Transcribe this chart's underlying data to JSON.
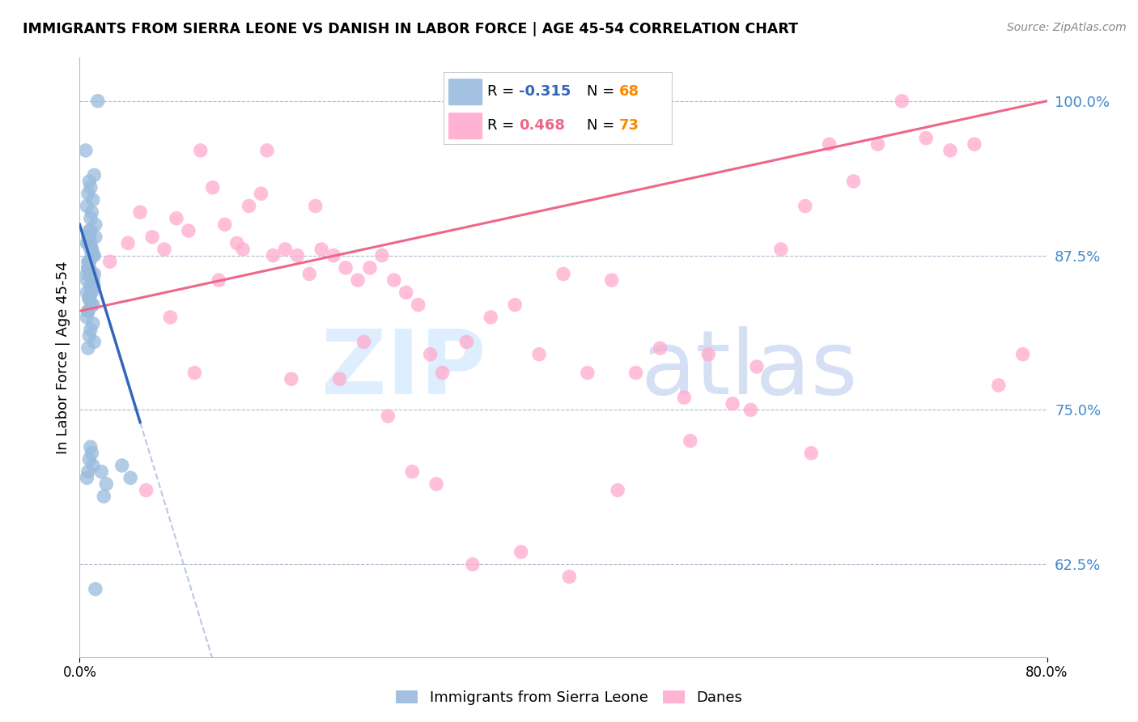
{
  "title": "IMMIGRANTS FROM SIERRA LEONE VS DANISH IN LABOR FORCE | AGE 45-54 CORRELATION CHART",
  "source": "Source: ZipAtlas.com",
  "ylabel": "In Labor Force | Age 45-54",
  "xlim": [
    0.0,
    80.0
  ],
  "ylim": [
    55.0,
    103.5
  ],
  "yticks": [
    62.5,
    75.0,
    87.5,
    100.0
  ],
  "ytick_labels": [
    "62.5%",
    "75.0%",
    "87.5%",
    "100.0%"
  ],
  "blue_color": "#99BBDD",
  "pink_color": "#FFAACC",
  "blue_line_color": "#3366BB",
  "pink_line_color": "#EE6688",
  "legend_n_color": "#FF8800",
  "blue_r_text": "-0.315",
  "pink_r_text": "0.468",
  "blue_n": "68",
  "pink_n": "73",
  "blue_x": [
    1.5,
    0.5,
    1.2,
    0.8,
    0.9,
    0.7,
    1.1,
    0.6,
    1.0,
    0.9,
    1.3,
    0.8,
    0.7,
    0.9,
    1.0,
    1.1,
    0.8,
    0.7,
    1.2,
    0.6,
    0.9,
    1.0,
    0.8,
    1.1,
    0.7,
    0.9,
    0.8,
    0.6,
    1.0,
    1.2,
    0.7,
    0.8,
    0.9,
    1.1,
    1.0,
    0.6,
    0.8,
    1.3,
    0.7,
    0.9,
    1.0,
    0.8,
    0.7,
    0.6,
    1.1,
    1.2,
    0.9,
    0.8,
    1.0,
    0.7,
    0.6,
    1.1,
    0.9,
    0.8,
    1.2,
    0.7,
    3.5,
    4.2,
    1.8,
    2.2,
    0.9,
    1.0,
    0.8,
    1.1,
    0.7,
    0.6,
    1.3,
    2.0
  ],
  "blue_y": [
    100.0,
    96.0,
    94.0,
    93.5,
    93.0,
    92.5,
    92.0,
    91.5,
    91.0,
    90.5,
    90.0,
    89.5,
    89.0,
    88.5,
    88.0,
    87.5,
    87.0,
    86.5,
    86.0,
    85.5,
    85.0,
    84.5,
    84.0,
    83.5,
    83.0,
    89.5,
    89.0,
    88.5,
    88.0,
    87.5,
    87.0,
    86.5,
    86.0,
    85.5,
    85.0,
    84.5,
    84.0,
    89.0,
    88.5,
    88.0,
    87.5,
    87.0,
    86.5,
    86.0,
    85.5,
    85.0,
    84.5,
    84.0,
    83.5,
    83.0,
    82.5,
    82.0,
    81.5,
    81.0,
    80.5,
    80.0,
    70.5,
    69.5,
    70.0,
    69.0,
    72.0,
    71.5,
    71.0,
    70.5,
    70.0,
    69.5,
    60.5,
    68.0
  ],
  "pink_x": [
    1.0,
    2.5,
    4.0,
    5.0,
    6.0,
    7.0,
    8.0,
    9.0,
    10.0,
    11.0,
    12.0,
    13.0,
    14.0,
    15.0,
    16.0,
    17.0,
    18.0,
    19.0,
    20.0,
    21.0,
    22.0,
    23.0,
    24.0,
    25.0,
    26.0,
    27.0,
    28.0,
    29.0,
    30.0,
    32.0,
    34.0,
    36.0,
    38.0,
    40.0,
    42.0,
    44.0,
    46.0,
    48.0,
    50.0,
    52.0,
    54.0,
    56.0,
    58.0,
    60.0,
    62.0,
    64.0,
    66.0,
    68.0,
    70.0,
    72.0,
    74.0,
    76.0,
    78.0,
    5.5,
    7.5,
    9.5,
    11.5,
    13.5,
    15.5,
    17.5,
    19.5,
    21.5,
    23.5,
    25.5,
    27.5,
    29.5,
    32.5,
    36.5,
    40.5,
    44.5,
    50.5,
    55.5,
    60.5
  ],
  "pink_y": [
    86.0,
    87.0,
    88.5,
    91.0,
    89.0,
    88.0,
    90.5,
    89.5,
    96.0,
    93.0,
    90.0,
    88.5,
    91.5,
    92.5,
    87.5,
    88.0,
    87.5,
    86.0,
    88.0,
    87.5,
    86.5,
    85.5,
    86.5,
    87.5,
    85.5,
    84.5,
    83.5,
    79.5,
    78.0,
    80.5,
    82.5,
    83.5,
    79.5,
    86.0,
    78.0,
    85.5,
    78.0,
    80.0,
    76.0,
    79.5,
    75.5,
    78.5,
    88.0,
    91.5,
    96.5,
    93.5,
    96.5,
    100.0,
    97.0,
    96.0,
    96.5,
    77.0,
    79.5,
    68.5,
    82.5,
    78.0,
    85.5,
    88.0,
    96.0,
    77.5,
    91.5,
    77.5,
    80.5,
    74.5,
    70.0,
    69.0,
    62.5,
    63.5,
    61.5,
    68.5,
    72.5,
    75.0,
    71.5
  ]
}
